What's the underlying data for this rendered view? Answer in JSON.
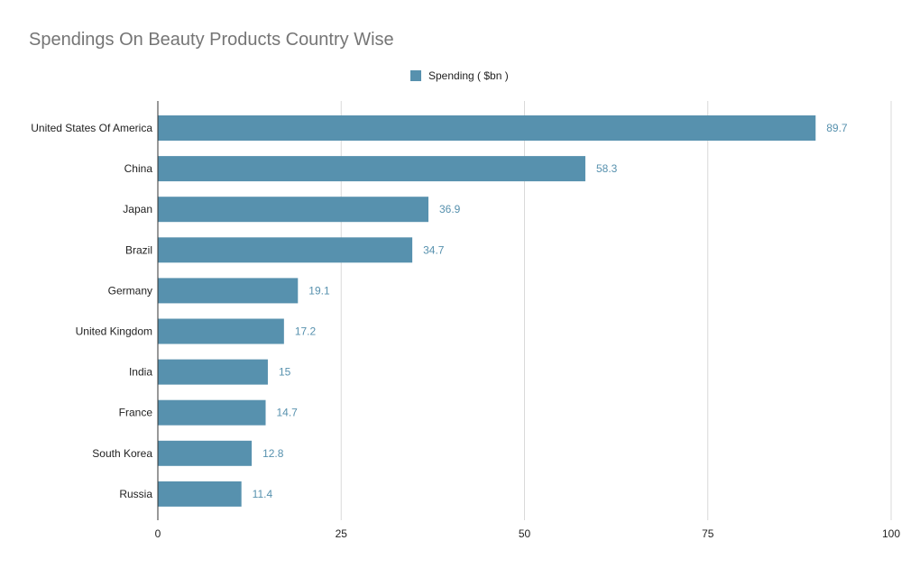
{
  "chart_data": {
    "type": "bar",
    "orientation": "horizontal",
    "title": "Spendings On Beauty Products Country Wise",
    "categories": [
      "United States Of America",
      "China",
      "Japan",
      "Brazil",
      "Germany",
      "United Kingdom",
      "India",
      "France",
      "South Korea",
      "Russia"
    ],
    "series": [
      {
        "name": "Spending ( $bn )",
        "values": [
          89.7,
          58.3,
          36.9,
          34.7,
          19.1,
          17.2,
          15,
          14.7,
          12.8,
          11.4
        ]
      }
    ],
    "value_labels": [
      "89.7",
      "58.3",
      "36.9",
      "34.7",
      "19.1",
      "17.2",
      "15",
      "14.7",
      "12.8",
      "11.4"
    ],
    "xlim": [
      0,
      100
    ],
    "x_ticks": [
      0,
      25,
      50,
      75,
      100
    ],
    "x_tick_labels": [
      "0",
      "25",
      "50",
      "75",
      "100"
    ],
    "grid": "vertical",
    "legend": "top-center",
    "colors": {
      "bar": "#5791ae",
      "value_label": "#5791ae",
      "grid": "#d9d9d9",
      "axis": "#333333"
    }
  }
}
